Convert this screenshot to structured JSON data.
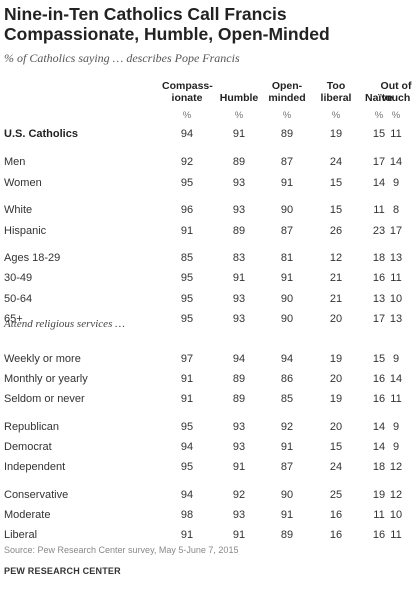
{
  "title": "Nine-in-Ten Catholics Call Francis Compassionate, Humble, Open-Minded",
  "subtitle": "% of Catholics saying … describes Pope Francis",
  "section_label": "Attend religious services …",
  "source": "Source: Pew Research Center survey, May 5-June 7, 2015",
  "org": "PEW RESEARCH CENTER",
  "chart_data": {
    "type": "table",
    "columns": [
      {
        "line1": "Compass-",
        "line2": "ionate",
        "unit": "%"
      },
      {
        "line1": "",
        "line2": "Humble",
        "unit": "%"
      },
      {
        "line1": "Open-",
        "line2": "minded",
        "unit": "%"
      },
      {
        "line1": "Too",
        "line2": "liberal",
        "unit": "%"
      },
      {
        "line1": "",
        "line2": "Naïve",
        "unit": "%"
      },
      {
        "line1": "Out of",
        "line2": "touch",
        "unit": "%"
      }
    ],
    "rows": [
      {
        "label": "U.S. Catholics",
        "values": [
          "94",
          "91",
          "89",
          "19",
          "15",
          "11"
        ]
      },
      {
        "label": "Men",
        "values": [
          "92",
          "89",
          "87",
          "24",
          "17",
          "14"
        ]
      },
      {
        "label": "Women",
        "values": [
          "95",
          "93",
          "91",
          "15",
          "14",
          "9"
        ]
      },
      {
        "label": "White",
        "values": [
          "96",
          "93",
          "90",
          "15",
          "11",
          "8"
        ]
      },
      {
        "label": "Hispanic",
        "values": [
          "91",
          "89",
          "87",
          "26",
          "23",
          "17"
        ]
      },
      {
        "label": "Ages 18-29",
        "values": [
          "85",
          "83",
          "81",
          "12",
          "18",
          "13"
        ]
      },
      {
        "label": "30-49",
        "values": [
          "95",
          "91",
          "91",
          "21",
          "16",
          "11"
        ]
      },
      {
        "label": "50-64",
        "values": [
          "95",
          "93",
          "90",
          "21",
          "13",
          "10"
        ]
      },
      {
        "label": "65+",
        "values": [
          "95",
          "93",
          "90",
          "20",
          "17",
          "13"
        ]
      },
      {
        "label": "Weekly or more",
        "values": [
          "97",
          "94",
          "94",
          "19",
          "15",
          "9"
        ]
      },
      {
        "label": "Monthly or yearly",
        "values": [
          "91",
          "89",
          "86",
          "20",
          "16",
          "14"
        ]
      },
      {
        "label": "Seldom or never",
        "values": [
          "91",
          "89",
          "85",
          "19",
          "16",
          "11"
        ]
      },
      {
        "label": "Republican",
        "values": [
          "95",
          "93",
          "92",
          "20",
          "14",
          "9"
        ]
      },
      {
        "label": "Democrat",
        "values": [
          "94",
          "93",
          "91",
          "15",
          "14",
          "9"
        ]
      },
      {
        "label": "Independent",
        "values": [
          "95",
          "91",
          "87",
          "24",
          "18",
          "12"
        ]
      },
      {
        "label": "Conservative",
        "values": [
          "94",
          "92",
          "90",
          "25",
          "19",
          "12"
        ]
      },
      {
        "label": "Moderate",
        "values": [
          "98",
          "93",
          "91",
          "16",
          "11",
          "10"
        ]
      },
      {
        "label": "Liberal",
        "values": [
          "91",
          "91",
          "89",
          "16",
          "16",
          "11"
        ]
      }
    ]
  }
}
